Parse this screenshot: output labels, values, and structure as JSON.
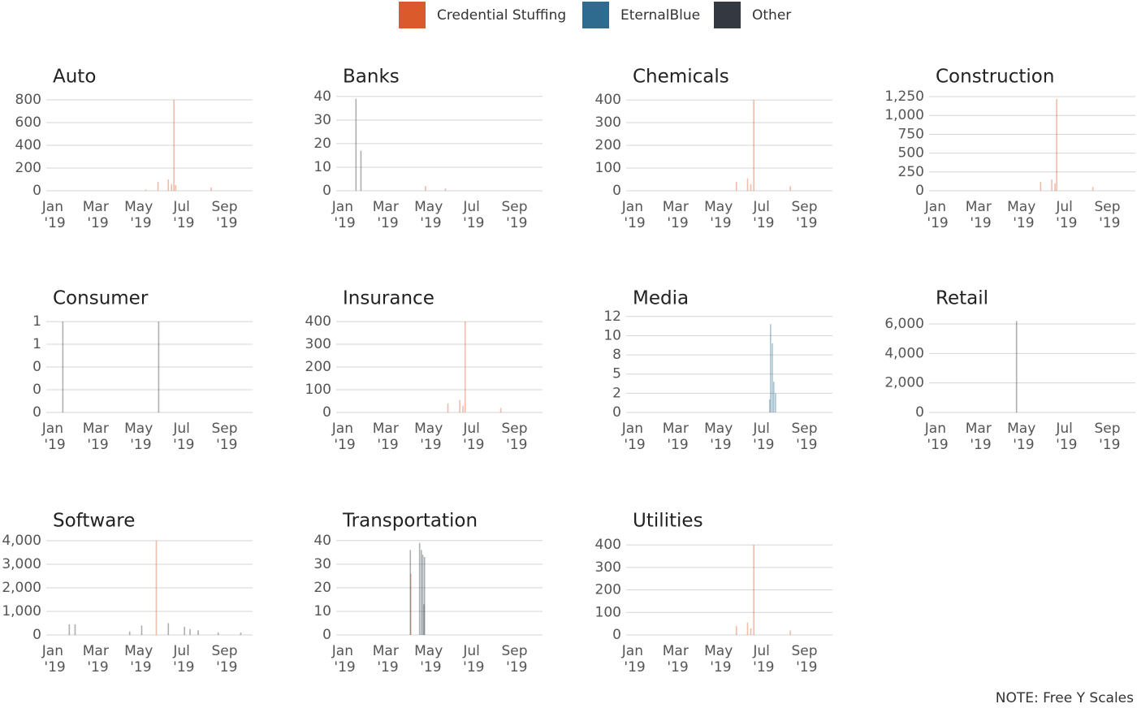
{
  "note": "NOTE: Free Y Scales",
  "chart_data": [
    {
      "type": "bar",
      "title": "Auto",
      "x": [
        5.23,
        5.8,
        6.28,
        6.43,
        6.54,
        6.62,
        8.27
      ],
      "series": [
        {
          "name": "Credential Stuffing",
          "color": "#d95a2b",
          "values": [
            10,
            80,
            100,
            60,
            800,
            50,
            30
          ]
        },
        {
          "name": "EternalBlue",
          "color": "#2f6b8e",
          "values": [
            null,
            null,
            null,
            null,
            null,
            null,
            null
          ]
        },
        {
          "name": "Other",
          "color": "#33393e",
          "values": [
            null,
            null,
            null,
            null,
            null,
            null,
            null
          ]
        }
      ],
      "xlim": [
        0.6,
        10.2
      ],
      "xticks": [
        {
          "value": 1,
          "label": "Jan '19"
        },
        {
          "value": 3,
          "label": "Mar '19"
        },
        {
          "value": 5,
          "label": "May '19"
        },
        {
          "value": 7,
          "label": "Jul '19"
        },
        {
          "value": 9,
          "label": "Sep '19"
        }
      ],
      "ylim": [
        0,
        871
      ],
      "yticks": [
        0,
        200,
        400,
        600,
        800
      ]
    },
    {
      "type": "bar",
      "title": "Banks",
      "x": [
        1.52,
        1.75,
        4.75,
        5.68
      ],
      "series": [
        {
          "name": "Credential Stuffing",
          "color": "#d95a2b",
          "values": [
            null,
            null,
            2,
            1
          ]
        },
        {
          "name": "EternalBlue",
          "color": "#2f6b8e",
          "values": [
            null,
            null,
            null,
            null
          ]
        },
        {
          "name": "Other",
          "color": "#33393e",
          "values": [
            39,
            17,
            null,
            null
          ]
        }
      ],
      "xlim": [
        0.6,
        10.2
      ],
      "xticks": [
        {
          "value": 1,
          "label": "Jan '19"
        },
        {
          "value": 3,
          "label": "Mar '19"
        },
        {
          "value": 5,
          "label": "May '19"
        },
        {
          "value": 7,
          "label": "Jul '19"
        },
        {
          "value": 9,
          "label": "Sep '19"
        }
      ],
      "ylim": [
        0,
        42
      ],
      "yticks": [
        0,
        10,
        20,
        30,
        40
      ]
    },
    {
      "type": "bar",
      "title": "Chemicals",
      "x": [
        5.73,
        6.25,
        6.4,
        6.54,
        8.24
      ],
      "series": [
        {
          "name": "Credential Stuffing",
          "color": "#d95a2b",
          "values": [
            40,
            55,
            30,
            400,
            20
          ]
        },
        {
          "name": "EternalBlue",
          "color": "#2f6b8e",
          "values": [
            null,
            null,
            null,
            null,
            null
          ]
        },
        {
          "name": "Other",
          "color": "#33393e",
          "values": [
            null,
            null,
            null,
            null,
            null
          ]
        }
      ],
      "xlim": [
        0.6,
        10.2
      ],
      "xticks": [
        {
          "value": 1,
          "label": "Jan '19"
        },
        {
          "value": 3,
          "label": "Mar '19"
        },
        {
          "value": 5,
          "label": "May '19"
        },
        {
          "value": 7,
          "label": "Jul '19"
        },
        {
          "value": 9,
          "label": "Sep '19"
        }
      ],
      "ylim": [
        0,
        436
      ],
      "yticks": [
        0,
        100,
        200,
        300,
        400
      ]
    },
    {
      "type": "bar",
      "title": "Construction",
      "x": [
        5.79,
        6.31,
        6.46,
        6.54,
        8.22
      ],
      "series": [
        {
          "name": "Credential Stuffing",
          "color": "#d95a2b",
          "values": [
            120,
            150,
            100,
            1220,
            50
          ]
        },
        {
          "name": "EternalBlue",
          "color": "#2f6b8e",
          "values": [
            null,
            null,
            null,
            null,
            null
          ]
        },
        {
          "name": "Other",
          "color": "#33393e",
          "values": [
            null,
            null,
            null,
            null,
            null
          ]
        }
      ],
      "xlim": [
        0.6,
        10.2
      ],
      "xticks": [
        {
          "value": 1,
          "label": "Jan '19"
        },
        {
          "value": 3,
          "label": "Mar '19"
        },
        {
          "value": 5,
          "label": "May '19"
        },
        {
          "value": 7,
          "label": "Jul '19"
        },
        {
          "value": 9,
          "label": "Sep '19"
        }
      ],
      "ylim": [
        0,
        1315
      ],
      "yticks": [
        0,
        250,
        500,
        750,
        {
          "value": 1000,
          "label": "1,000"
        },
        {
          "value": 1250,
          "label": "1,250"
        }
      ]
    },
    {
      "type": "bar",
      "title": "Consumer",
      "x": [
        1.37,
        5.83
      ],
      "series": [
        {
          "name": "Credential Stuffing",
          "color": "#d95a2b",
          "values": [
            null,
            null
          ]
        },
        {
          "name": "EternalBlue",
          "color": "#2f6b8e",
          "values": [
            null,
            null
          ]
        },
        {
          "name": "Other",
          "color": "#33393e",
          "values": [
            1,
            1
          ]
        }
      ],
      "xlim": [
        0.6,
        10.2
      ],
      "xticks": [
        {
          "value": 1,
          "label": "Jan '19"
        },
        {
          "value": 3,
          "label": "Mar '19"
        },
        {
          "value": 5,
          "label": "May '19"
        },
        {
          "value": 7,
          "label": "Jul '19"
        },
        {
          "value": 9,
          "label": "Sep '19"
        }
      ],
      "ylim": [
        0,
        1.09
      ],
      "yticks": [
        0,
        {
          "value": 0.25,
          "label": "0"
        },
        {
          "value": 0.5,
          "label": "0"
        },
        {
          "value": 0.75,
          "label": "1"
        },
        1
      ]
    },
    {
      "type": "bar",
      "title": "Insurance",
      "x": [
        5.8,
        6.35,
        6.5,
        6.6,
        8.26
      ],
      "series": [
        {
          "name": "Credential Stuffing",
          "color": "#d95a2b",
          "values": [
            40,
            55,
            30,
            400,
            20
          ]
        },
        {
          "name": "EternalBlue",
          "color": "#2f6b8e",
          "values": [
            null,
            null,
            null,
            null,
            null
          ]
        },
        {
          "name": "Other",
          "color": "#33393e",
          "values": [
            null,
            null,
            null,
            null,
            null
          ]
        }
      ],
      "xlim": [
        0.6,
        10.2
      ],
      "xticks": [
        {
          "value": 1,
          "label": "Jan '19"
        },
        {
          "value": 3,
          "label": "Mar '19"
        },
        {
          "value": 5,
          "label": "May '19"
        },
        {
          "value": 7,
          "label": "Jul '19"
        },
        {
          "value": 9,
          "label": "Sep '19"
        }
      ],
      "ylim": [
        0,
        436
      ],
      "yticks": [
        0,
        100,
        200,
        300,
        400
      ]
    },
    {
      "type": "bar",
      "title": "Media",
      "x": [
        7.28,
        7.32,
        7.4,
        7.47,
        7.55
      ],
      "series": [
        {
          "name": "Credential Stuffing",
          "color": "#d95a2b",
          "values": [
            null,
            null,
            null,
            null,
            null
          ]
        },
        {
          "name": "EternalBlue",
          "color": "#2f6b8e",
          "values": [
            1.7,
            11.5,
            9,
            4,
            2.5
          ]
        },
        {
          "name": "Other",
          "color": "#33393e",
          "values": [
            null,
            null,
            null,
            null,
            null
          ]
        }
      ],
      "xlim": [
        0.6,
        10.2
      ],
      "xticks": [
        {
          "value": 1,
          "label": "Jan '19"
        },
        {
          "value": 3,
          "label": "Mar '19"
        },
        {
          "value": 5,
          "label": "May '19"
        },
        {
          "value": 7,
          "label": "Jul '19"
        },
        {
          "value": 9,
          "label": "Sep '19"
        }
      ],
      "ylim": [
        0,
        12.9
      ],
      "yticks": [
        0,
        {
          "value": 2.5,
          "label": "2"
        },
        5,
        {
          "value": 7.5,
          "label": "8"
        },
        10,
        {
          "value": 12.5,
          "label": "12"
        }
      ]
    },
    {
      "type": "bar",
      "title": "Retail",
      "x": [
        4.67
      ],
      "series": [
        {
          "name": "Credential Stuffing",
          "color": "#d95a2b",
          "values": [
            null
          ]
        },
        {
          "name": "EternalBlue",
          "color": "#2f6b8e",
          "values": [
            null
          ]
        },
        {
          "name": "Other",
          "color": "#33393e",
          "values": [
            6200
          ]
        }
      ],
      "xlim": [
        0.6,
        10.2
      ],
      "xticks": [
        {
          "value": 1,
          "label": "Jan '19"
        },
        {
          "value": 3,
          "label": "Mar '19"
        },
        {
          "value": 5,
          "label": "May '19"
        },
        {
          "value": 7,
          "label": "Jul '19"
        },
        {
          "value": 9,
          "label": "Sep '19"
        }
      ],
      "ylim": [
        0,
        6716
      ],
      "yticks": [
        0,
        {
          "value": 2000,
          "label": "2,000"
        },
        {
          "value": 4000,
          "label": "4,000"
        },
        {
          "value": 6000,
          "label": "6,000"
        }
      ]
    },
    {
      "type": "bar",
      "title": "Software",
      "x": [
        1.67,
        1.94,
        4.48,
        5.04,
        5.72,
        6.28,
        7.03,
        7.29,
        7.67,
        8.6,
        9.65
      ],
      "series": [
        {
          "name": "Credential Stuffing",
          "color": "#d95a2b",
          "values": [
            null,
            null,
            null,
            null,
            4000,
            null,
            null,
            null,
            null,
            null,
            null
          ]
        },
        {
          "name": "EternalBlue",
          "color": "#2f6b8e",
          "values": [
            null,
            null,
            null,
            null,
            null,
            null,
            null,
            null,
            null,
            null,
            null
          ]
        },
        {
          "name": "Other",
          "color": "#33393e",
          "values": [
            450,
            450,
            150,
            400,
            null,
            500,
            350,
            250,
            200,
            100,
            100
          ]
        }
      ],
      "xlim": [
        0.6,
        10.2
      ],
      "xticks": [
        {
          "value": 1,
          "label": "Jan '19"
        },
        {
          "value": 3,
          "label": "Mar '19"
        },
        {
          "value": 5,
          "label": "May '19"
        },
        {
          "value": 7,
          "label": "Jul '19"
        },
        {
          "value": 9,
          "label": "Sep '19"
        }
      ],
      "ylim": [
        0,
        4207
      ],
      "yticks": [
        0,
        {
          "value": 1000,
          "label": "1,000"
        },
        {
          "value": 2000,
          "label": "2,000"
        },
        {
          "value": 3000,
          "label": "3,000"
        },
        {
          "value": 4000,
          "label": "4,000"
        }
      ]
    },
    {
      "type": "bar",
      "title": "Transportation",
      "x": [
        4.05,
        4.07,
        4.48,
        4.56,
        4.63,
        4.68,
        4.71
      ],
      "series": [
        {
          "name": "Credential Stuffing",
          "color": "#d95a2b",
          "values": [
            null,
            26,
            null,
            null,
            null,
            null,
            null
          ]
        },
        {
          "name": "EternalBlue",
          "color": "#2f6b8e",
          "values": [
            null,
            null,
            null,
            null,
            null,
            null,
            null
          ]
        },
        {
          "name": "Other",
          "color": "#33393e",
          "values": [
            36,
            null,
            39,
            36,
            34,
            13,
            33
          ]
        }
      ],
      "xlim": [
        0.6,
        10.2
      ],
      "xticks": [
        {
          "value": 1,
          "label": "Jan '19"
        },
        {
          "value": 3,
          "label": "Mar '19"
        },
        {
          "value": 5,
          "label": "May '19"
        },
        {
          "value": 7,
          "label": "Jul '19"
        },
        {
          "value": 9,
          "label": "Sep '19"
        }
      ],
      "ylim": [
        0,
        42
      ],
      "yticks": [
        0,
        10,
        20,
        30,
        40
      ]
    },
    {
      "type": "bar",
      "title": "Utilities",
      "x": [
        5.73,
        6.25,
        6.4,
        6.54,
        8.24
      ],
      "series": [
        {
          "name": "Credential Stuffing",
          "color": "#d95a2b",
          "values": [
            40,
            55,
            30,
            400,
            20
          ]
        },
        {
          "name": "EternalBlue",
          "color": "#2f6b8e",
          "values": [
            null,
            null,
            null,
            null,
            null
          ]
        },
        {
          "name": "Other",
          "color": "#33393e",
          "values": [
            null,
            null,
            null,
            null,
            null
          ]
        }
      ],
      "xlim": [
        0.6,
        10.2
      ],
      "xticks": [
        {
          "value": 1,
          "label": "Jan '19"
        },
        {
          "value": 3,
          "label": "Mar '19"
        },
        {
          "value": 5,
          "label": "May '19"
        },
        {
          "value": 7,
          "label": "Jul '19"
        },
        {
          "value": 9,
          "label": "Sep '19"
        }
      ],
      "ylim": [
        0,
        440
      ],
      "yticks": [
        0,
        100,
        200,
        300,
        400
      ]
    }
  ]
}
